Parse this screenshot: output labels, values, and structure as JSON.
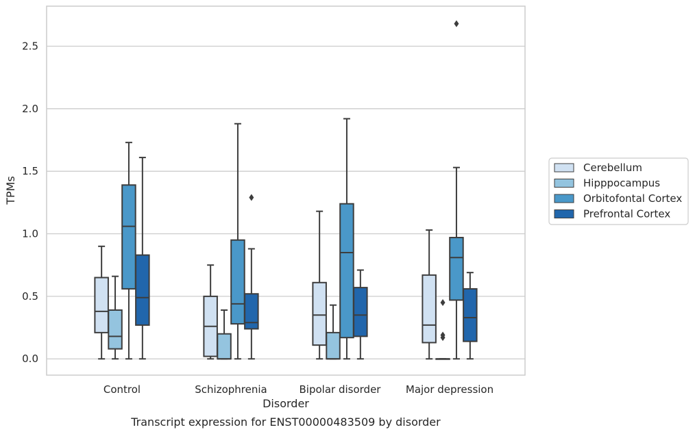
{
  "chart_data": {
    "type": "box",
    "caption": "Transcript expression for ENST00000483509 by disorder",
    "xlabel": "Disorder",
    "ylabel": "TPMs",
    "ylim": [
      -0.13,
      2.82
    ],
    "yticks": [
      "0.0",
      "0.5",
      "1.0",
      "1.5",
      "2.0",
      "2.5"
    ],
    "ytick_values": [
      0.0,
      0.5,
      1.0,
      1.5,
      2.0,
      2.5
    ],
    "grid": "horizontal",
    "legend_position": "right",
    "categories": [
      "Control",
      "Schizophrenia",
      "Bipolar disorder",
      "Major depression"
    ],
    "series": [
      {
        "name": "Cerebellum",
        "color": "#d0e1f2",
        "boxes": [
          {
            "whisker_low": 0.0,
            "q1": 0.21,
            "median": 0.38,
            "q3": 0.65,
            "whisker_high": 0.9,
            "outliers": []
          },
          {
            "whisker_low": 0.0,
            "q1": 0.02,
            "median": 0.26,
            "q3": 0.5,
            "whisker_high": 0.75,
            "outliers": []
          },
          {
            "whisker_low": 0.0,
            "q1": 0.11,
            "median": 0.35,
            "q3": 0.61,
            "whisker_high": 1.18,
            "outliers": []
          },
          {
            "whisker_low": 0.0,
            "q1": 0.13,
            "median": 0.27,
            "q3": 0.67,
            "whisker_high": 1.03,
            "outliers": []
          }
        ]
      },
      {
        "name": "Hipppocampus",
        "color": "#94c4df",
        "boxes": [
          {
            "whisker_low": 0.0,
            "q1": 0.08,
            "median": 0.18,
            "q3": 0.39,
            "whisker_high": 0.66,
            "outliers": []
          },
          {
            "whisker_low": 0.0,
            "q1": 0.0,
            "median": 0.0,
            "q3": 0.2,
            "whisker_high": 0.39,
            "outliers": []
          },
          {
            "whisker_low": 0.0,
            "q1": 0.0,
            "median": 0.0,
            "q3": 0.21,
            "whisker_high": 0.43,
            "outliers": []
          },
          {
            "whisker_low": 0.0,
            "q1": 0.0,
            "median": 0.0,
            "q3": 0.0,
            "whisker_high": 0.0,
            "outliers": [
              0.45,
              0.19,
              0.17
            ]
          }
        ]
      },
      {
        "name": "Orbitofontal Cortex",
        "color": "#4a98c9",
        "boxes": [
          {
            "whisker_low": 0.0,
            "q1": 0.56,
            "median": 1.06,
            "q3": 1.39,
            "whisker_high": 1.73,
            "outliers": []
          },
          {
            "whisker_low": 0.0,
            "q1": 0.28,
            "median": 0.44,
            "q3": 0.95,
            "whisker_high": 1.88,
            "outliers": []
          },
          {
            "whisker_low": 0.0,
            "q1": 0.17,
            "median": 0.85,
            "q3": 1.24,
            "whisker_high": 1.92,
            "outliers": []
          },
          {
            "whisker_low": 0.0,
            "q1": 0.47,
            "median": 0.81,
            "q3": 0.97,
            "whisker_high": 1.53,
            "outliers": [
              2.68
            ]
          }
        ]
      },
      {
        "name": "Prefrontal Cortex",
        "color": "#2166ac",
        "boxes": [
          {
            "whisker_low": 0.0,
            "q1": 0.27,
            "median": 0.49,
            "q3": 0.83,
            "whisker_high": 1.61,
            "outliers": []
          },
          {
            "whisker_low": 0.0,
            "q1": 0.24,
            "median": 0.29,
            "q3": 0.52,
            "whisker_high": 0.88,
            "outliers": [
              1.29
            ]
          },
          {
            "whisker_low": 0.0,
            "q1": 0.18,
            "median": 0.35,
            "q3": 0.57,
            "whisker_high": 0.71,
            "outliers": []
          },
          {
            "whisker_low": 0.0,
            "q1": 0.14,
            "median": 0.33,
            "q3": 0.56,
            "whisker_high": 0.69,
            "outliers": []
          }
        ]
      }
    ],
    "colors": {
      "grid": "#cccccc",
      "frame": "#cccccc",
      "stroke": "#3d3d3d"
    }
  }
}
